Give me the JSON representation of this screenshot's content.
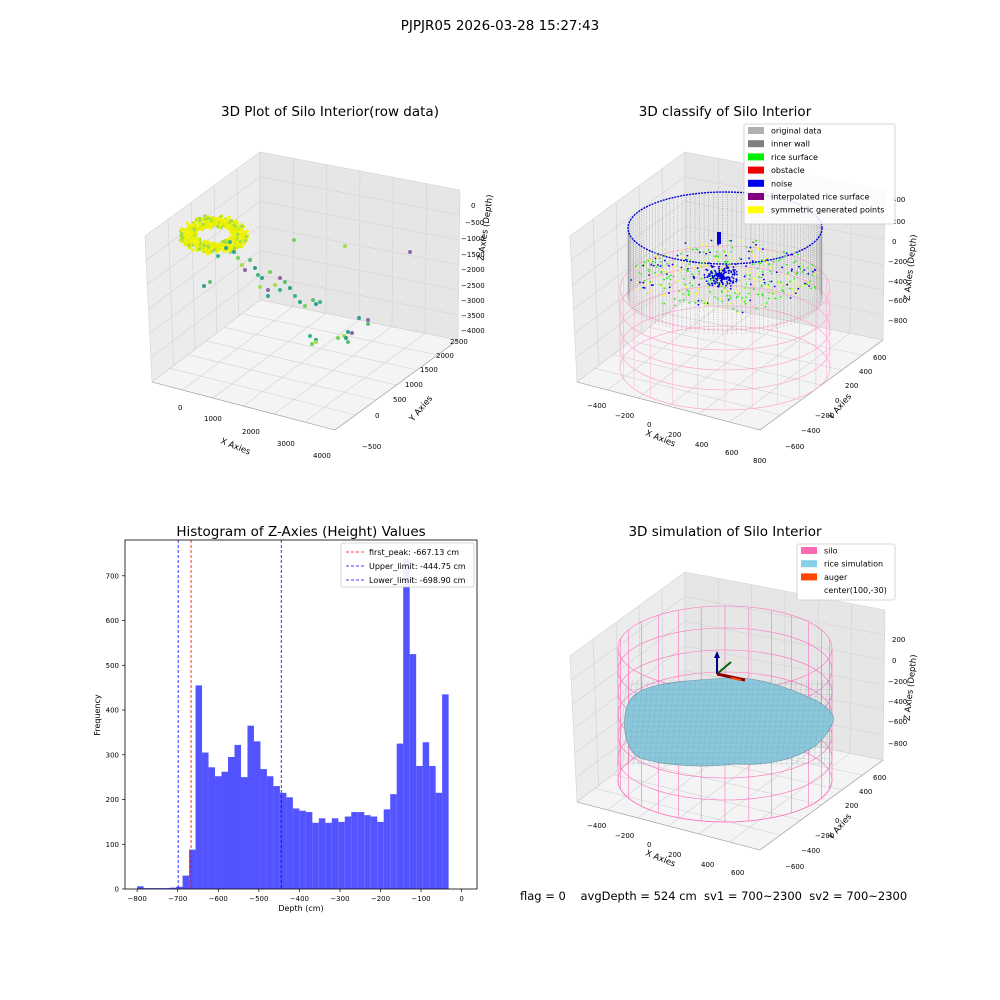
{
  "figure": {
    "title": "PJPJR05 2026-03-28 15:27:43",
    "footer": "flag = 0    avgDepth = 524 cm  sv1 = 700~2300  sv2 = 700~2300"
  },
  "colors": {
    "hist_bar": "#5050ff",
    "peak_line": "#ff0000",
    "limit_line": "#0000ff",
    "yellow": "#f0f000",
    "noise": "#0000dd",
    "rice_surface": "#22ee22",
    "inner_wall": "#888888",
    "silo_wire": "#ff88cc",
    "sim_surface": "#8cc8dc"
  },
  "panel_raw": {
    "title": "3D Plot of Silo Interior(row data)",
    "xlabel": "X Axies",
    "ylabel": "Y Axies",
    "zlabel": "Z Axies (Depth)",
    "xticks": [
      "0",
      "1000",
      "2000",
      "3000",
      "4000"
    ],
    "yticks": [
      "−500",
      "0",
      "500",
      "1000",
      "1500",
      "2000",
      "2500"
    ],
    "zticks": [
      "0",
      "−500",
      "−1000",
      "−1500",
      "−2000",
      "−2500",
      "−3000",
      "−3500",
      "−4000"
    ]
  },
  "panel_classify": {
    "title": "3D classify of Silo Interior",
    "xlabel": "X Axies",
    "ylabel": "Y Axies",
    "zlabel": "Z Axies (Depth)",
    "xticks": [
      "−400",
      "−200",
      "0",
      "200",
      "400",
      "600",
      "800"
    ],
    "yticks": [
      "−600",
      "−400",
      "−200",
      "0",
      "200",
      "400",
      "600"
    ],
    "zticks": [
      "400",
      "200",
      "0",
      "−200",
      "−400",
      "−600",
      "−800"
    ],
    "legend": [
      {
        "label": "original data",
        "color": "#b0b0b0"
      },
      {
        "label": "inner wall",
        "color": "#808080"
      },
      {
        "label": "rice surface",
        "color": "#00ee00"
      },
      {
        "label": "obstacle",
        "color": "#ee0000"
      },
      {
        "label": "noise",
        "color": "#0000ee"
      },
      {
        "label": "interpolated rice surface",
        "color": "#800080"
      },
      {
        "label": "symmetric generated points",
        "color": "#ffff00"
      }
    ]
  },
  "panel_sim": {
    "title": "3D simulation of Silo Interior",
    "xlabel": "X Axies",
    "ylabel": "Y Axies",
    "zlabel": "Z Axies (Depth)",
    "xticks": [
      "−400",
      "−200",
      "0",
      "200",
      "400",
      "600"
    ],
    "yticks": [
      "−600",
      "−400",
      "−200",
      "0",
      "200",
      "400",
      "600"
    ],
    "zticks": [
      "200",
      "0",
      "−200",
      "−400",
      "−600",
      "−800"
    ],
    "legend": [
      {
        "label": "silo",
        "color": "#ff69b4"
      },
      {
        "label": "rice simulation",
        "color": "#87ceeb"
      },
      {
        "label": "auger",
        "color": "#ff4500"
      },
      {
        "label": "center(100,-30)",
        "color": ""
      }
    ]
  },
  "chart_data": {
    "type": "bar",
    "title": "Histogram of Z-Axies (Height) Values",
    "xlabel": "Depth (cm)",
    "ylabel": "Frequency",
    "xlim": [
      -830,
      38
    ],
    "ylim": [
      0,
      780
    ],
    "xticks": [
      -800,
      -700,
      -600,
      -500,
      -400,
      -300,
      -200,
      -100,
      0
    ],
    "yticks": [
      0,
      100,
      200,
      300,
      400,
      500,
      600,
      700
    ],
    "bin_start": -800,
    "bin_width": 16,
    "values": [
      6,
      2,
      2,
      2,
      2,
      3,
      5,
      30,
      88,
      455,
      305,
      272,
      252,
      262,
      295,
      322,
      250,
      365,
      330,
      268,
      252,
      230,
      215,
      205,
      180,
      175,
      172,
      148,
      158,
      148,
      158,
      150,
      162,
      172,
      172,
      165,
      162,
      150,
      178,
      212,
      325,
      738,
      525,
      275,
      328,
      275,
      215,
      435
    ],
    "vlines": [
      {
        "label": "first_peak: -667.13 cm",
        "x": -667.13,
        "color": "#ff0000"
      },
      {
        "label": "Upper_limit: -444.75 cm",
        "x": -444.75,
        "color": "#0000ff"
      },
      {
        "label": "Lower_limit: -698.90 cm",
        "x": -698.9,
        "color": "#0000ff"
      }
    ],
    "legend_position": "top-right"
  }
}
